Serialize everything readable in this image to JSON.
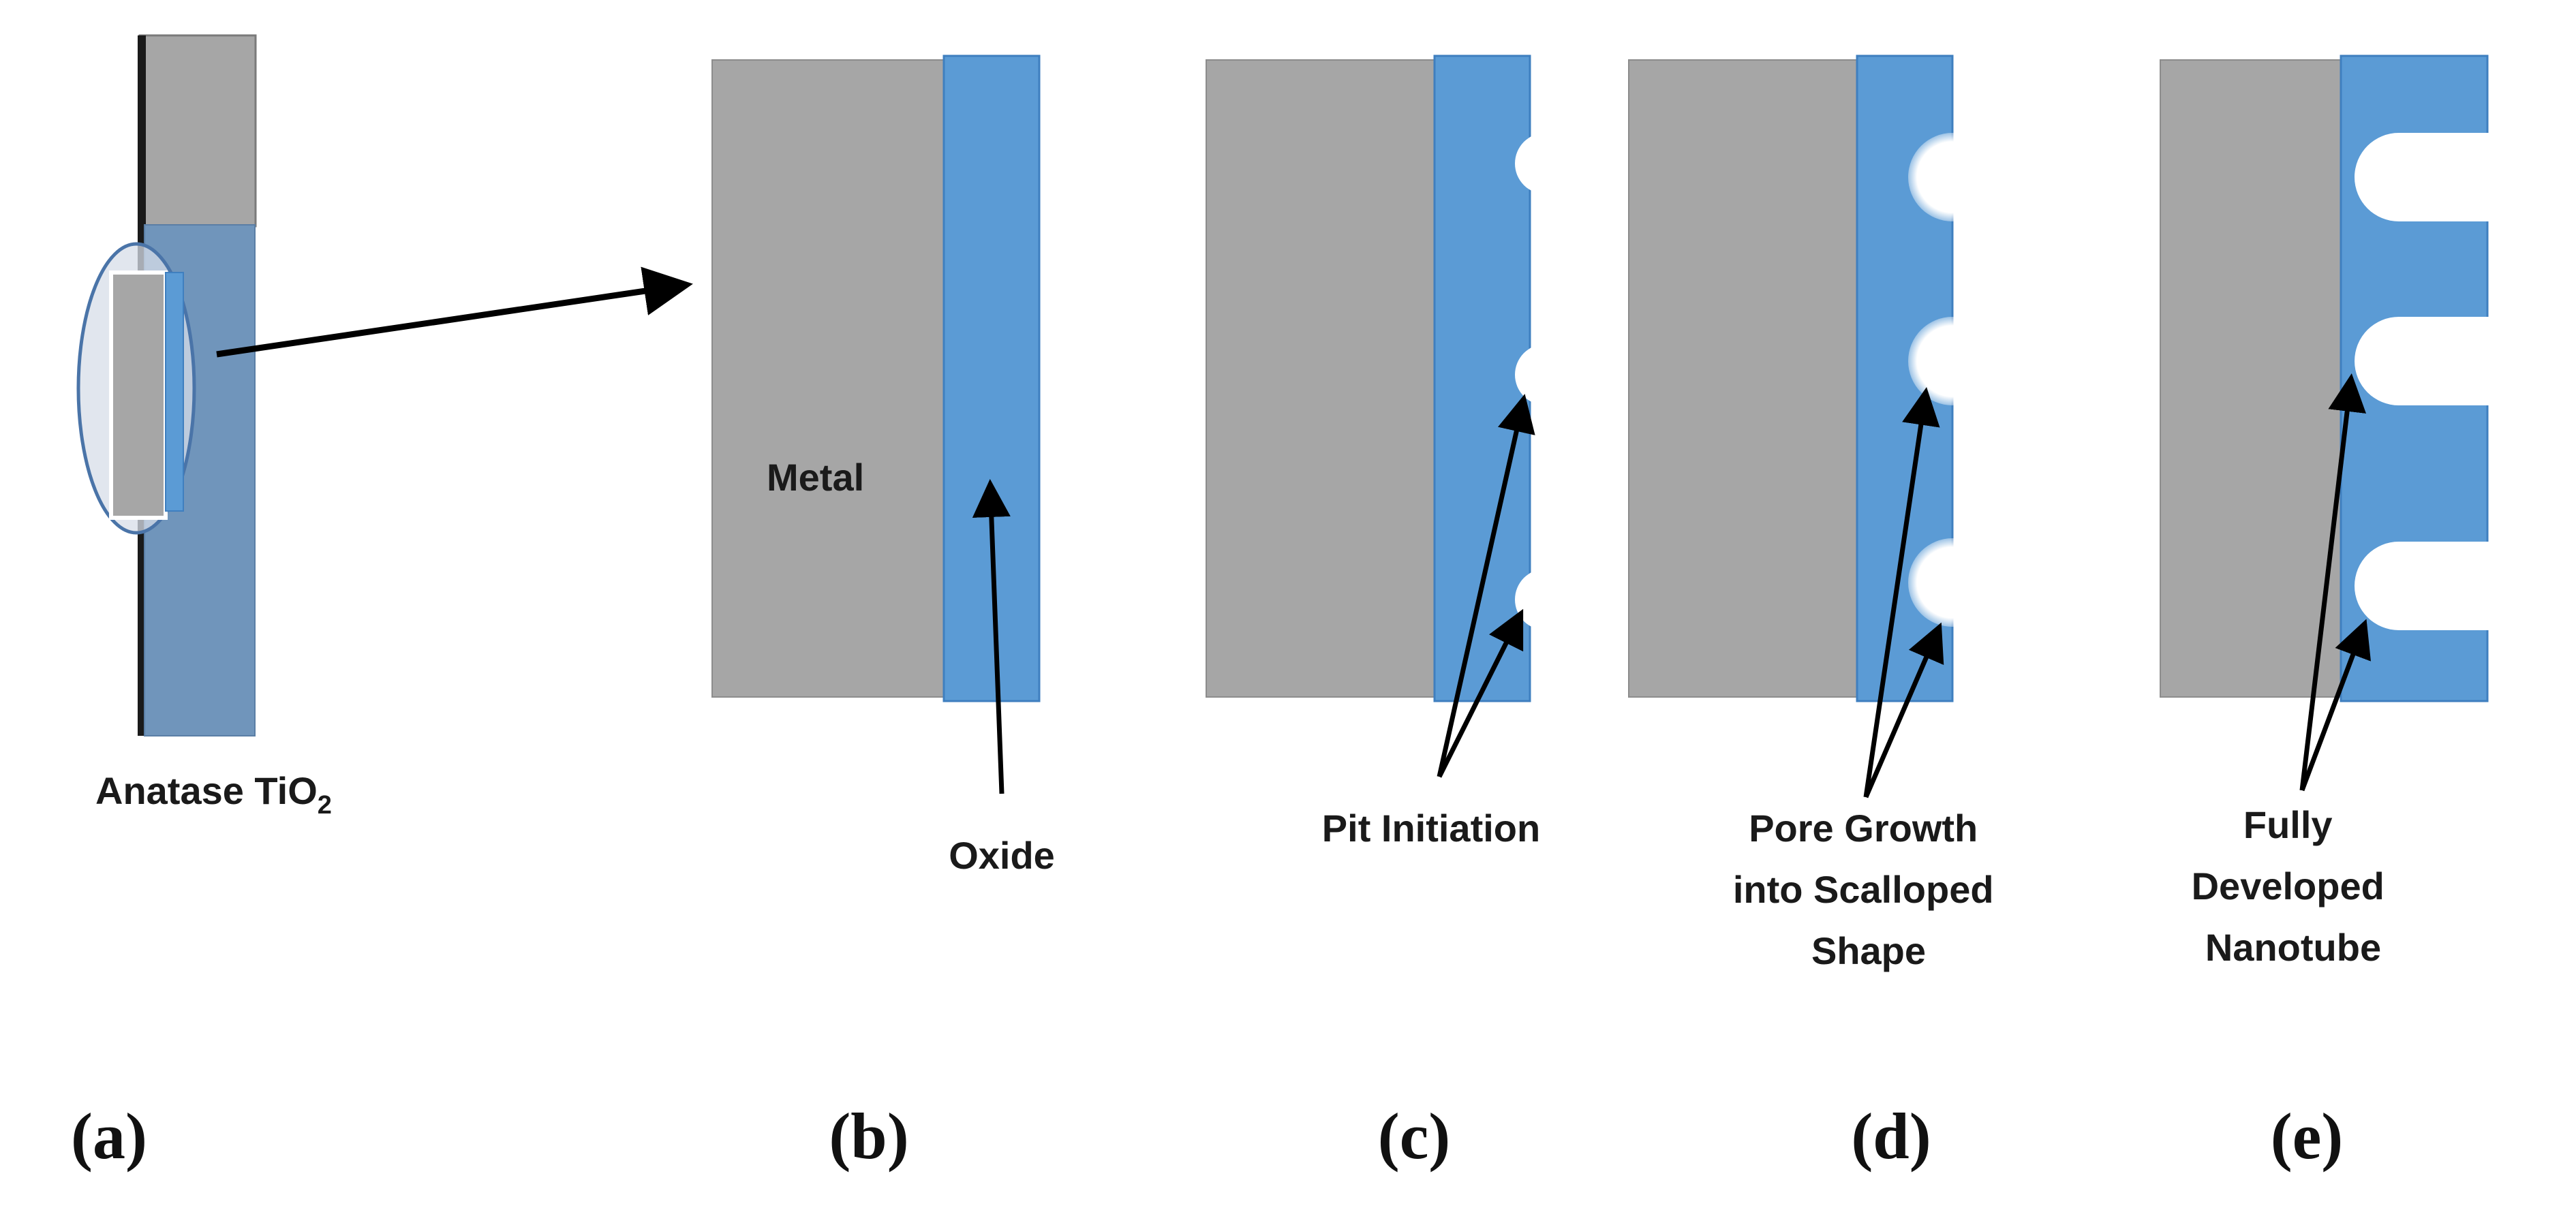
{
  "figure": {
    "colors": {
      "metal": "#a6a6a6",
      "oxide": "#5b9bd5",
      "solution": "#7095bb",
      "arrow": "#000000",
      "pore": "#ffffff"
    },
    "panels": [
      {
        "letter": "(a)",
        "label_lines": [
          "Anatase TiO",
          "2"
        ]
      },
      {
        "letter": "(b)",
        "metal_label": "Metal",
        "label_lines": [
          "Oxide"
        ]
      },
      {
        "letter": "(c)",
        "label_lines": [
          "Pit Initiation"
        ]
      },
      {
        "letter": "(d)",
        "label_lines": [
          "Pore Growth",
          "into Scalloped",
          "Shape"
        ]
      },
      {
        "letter": "(e)",
        "label_lines": [
          "Fully",
          "Developed",
          "Nanotube"
        ]
      }
    ]
  }
}
